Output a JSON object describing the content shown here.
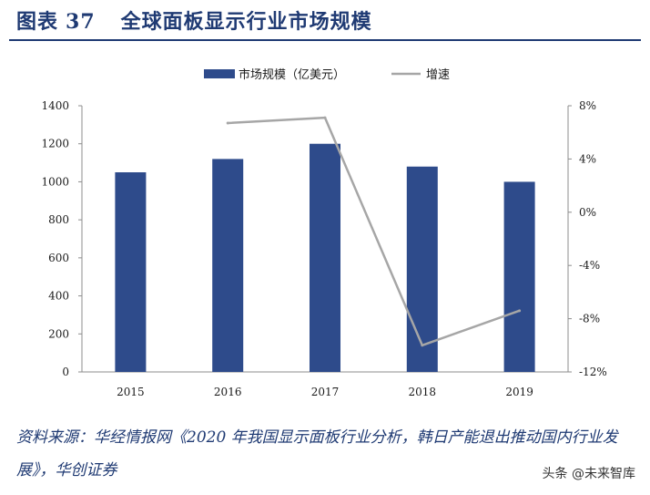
{
  "figure": {
    "label": "图表",
    "number": "37",
    "title": "全球面板显示行业市场规模"
  },
  "chart_data": {
    "type": "bar",
    "categories": [
      "2015",
      "2016",
      "2017",
      "2018",
      "2019"
    ],
    "series": [
      {
        "name": "市场规模（亿美元）",
        "type": "bar",
        "axis": "left",
        "color": "#2e4b8b",
        "values": [
          1050,
          1120,
          1200,
          1080,
          1000
        ]
      },
      {
        "name": "增速",
        "type": "line",
        "axis": "right",
        "color": "#a6a6a6",
        "values": [
          null,
          6.7,
          7.1,
          -10.0,
          -7.4
        ]
      }
    ],
    "y_left": {
      "min": 0,
      "max": 1400,
      "ticks": [
        "0",
        "200",
        "400",
        "600",
        "800",
        "1000",
        "1200",
        "1400"
      ]
    },
    "y_right": {
      "min": -12,
      "max": 8,
      "ticks": [
        "-12%",
        "-8%",
        "-4%",
        "0%",
        "4%",
        "8%"
      ]
    },
    "legend_position": "top-center",
    "grid": false
  },
  "source": {
    "text": "资料来源：华经情报网《2020 年我国显示面板行业分析，韩日产能退出推动国内行业发展》，华创证券"
  },
  "watermark": "头条 @未来智库"
}
